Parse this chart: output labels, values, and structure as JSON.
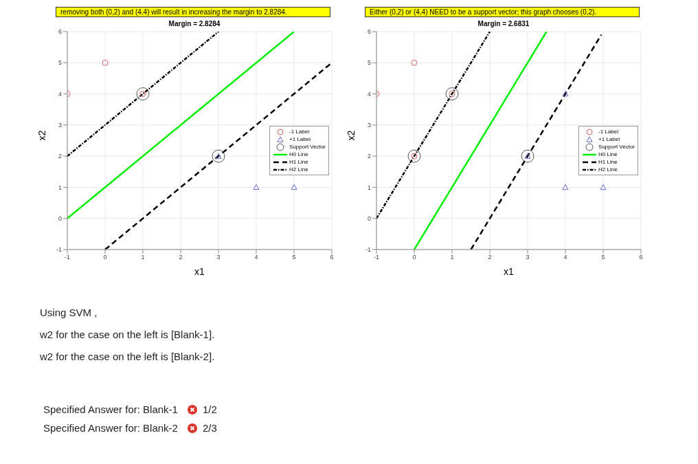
{
  "chart_data": [
    {
      "type": "scatter",
      "title": "Margin = 2.8284",
      "annotations": [
        "removing both (0,2) and (4,4) will result in increasing the margin to 2.8284."
      ],
      "xlabel": "x1",
      "ylabel": "x2",
      "xlim": [
        -1,
        6
      ],
      "ylim": [
        -1,
        6
      ],
      "xticks": [
        -1,
        0,
        1,
        2,
        3,
        4,
        5,
        6
      ],
      "yticks": [
        -1,
        0,
        1,
        2,
        3,
        4,
        5,
        6
      ],
      "grid": true,
      "legend": "right",
      "series": [
        {
          "name": "-1 Label",
          "type": "scatter",
          "marker": "circle",
          "color": "#e06666",
          "x": [
            0,
            -1,
            1
          ],
          "values": [
            5,
            4,
            4
          ]
        },
        {
          "name": "+1 Label",
          "type": "scatter",
          "marker": "triangle",
          "color": "#6666cc",
          "x": [
            3,
            4,
            5
          ],
          "values": [
            2,
            1,
            1
          ]
        },
        {
          "name": "Support Vector",
          "type": "scatter",
          "marker": "circle",
          "color": "#555555",
          "x": [
            1,
            3
          ],
          "values": [
            4,
            2
          ]
        },
        {
          "name": "H0 Line",
          "type": "line",
          "line_style": "solid",
          "color": "#00ee00",
          "x": [
            -1,
            5
          ],
          "values": [
            0,
            6
          ]
        },
        {
          "name": "H1 Line",
          "type": "line",
          "line_style": "dashed",
          "color": "#000000",
          "x": [
            0,
            6
          ],
          "values": [
            -1,
            5
          ]
        },
        {
          "name": "H2 Line",
          "type": "line",
          "line_style": "dotted",
          "color": "#000000",
          "x": [
            -1,
            3
          ],
          "values": [
            2,
            6
          ]
        }
      ]
    },
    {
      "type": "scatter",
      "title": "Margin = 2.6831",
      "annotations": [
        "Either (0,2) or (4,4) NEED to be a support vector; this graph chooses (0,2)."
      ],
      "xlabel": "x1",
      "ylabel": "x2",
      "xlim": [
        -1,
        6
      ],
      "ylim": [
        -1,
        6
      ],
      "xticks": [
        -1,
        0,
        1,
        2,
        3,
        4,
        5,
        6
      ],
      "yticks": [
        -1,
        0,
        1,
        2,
        3,
        4,
        5,
        6
      ],
      "grid": true,
      "legend": "right",
      "series": [
        {
          "name": "-1 Label",
          "type": "scatter",
          "marker": "circle",
          "color": "#e06666",
          "x": [
            0,
            -1,
            1,
            0
          ],
          "values": [
            5,
            4,
            4,
            2
          ]
        },
        {
          "name": "+1 Label",
          "type": "scatter",
          "marker": "triangle",
          "color": "#6666cc",
          "x": [
            3,
            4,
            5,
            4
          ],
          "values": [
            2,
            1,
            1,
            4
          ]
        },
        {
          "name": "Support Vector",
          "type": "scatter",
          "marker": "circle",
          "color": "#555555",
          "x": [
            1,
            0,
            3
          ],
          "values": [
            4,
            2,
            2
          ]
        },
        {
          "name": "H0 Line",
          "type": "line",
          "line_style": "solid",
          "color": "#00ee00",
          "x": [
            0,
            3.5
          ],
          "values": [
            -1,
            6
          ]
        },
        {
          "name": "H1 Line",
          "type": "line",
          "line_style": "dashed",
          "color": "#000000",
          "x": [
            1.5,
            4.95
          ],
          "values": [
            -1,
            5.9
          ]
        },
        {
          "name": "H2 Line",
          "type": "line",
          "line_style": "dotted",
          "color": "#000000",
          "x": [
            -1,
            2
          ],
          "values": [
            0,
            6
          ]
        }
      ]
    },
    {
      "type": "other",
      "annotations": [
        "Using SVM ,",
        "w2 for the case on the left is [Blank-1].",
        "w2 for the case on the left is [Blank-2].",
        "Specified Answer for: Blank-1",
        "1/2",
        "Specified Answer for: Blank-2",
        "2/3"
      ]
    }
  ]
}
